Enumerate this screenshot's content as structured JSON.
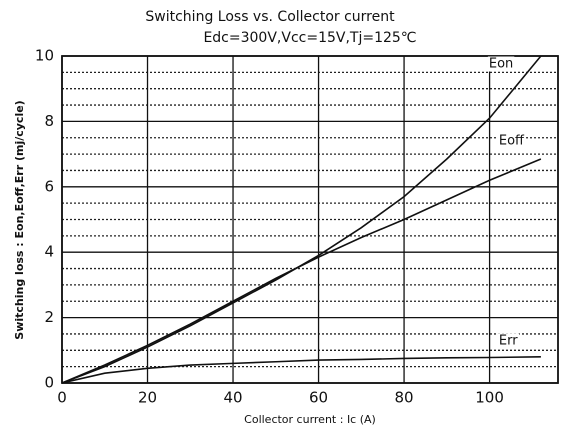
{
  "chart_data": {
    "type": "line",
    "title": "Switching Loss vs. Collector current",
    "subtitle": "Edc=300V,Vcc=15V,Tj=125℃",
    "x_label": "Collector current : Ic (A)",
    "y_label": "Switching loss : Eon,Eoff,Err (mj/cycle)",
    "x": [
      0,
      10,
      20,
      30,
      40,
      50,
      60,
      70,
      80,
      90,
      100,
      112
    ],
    "series": [
      {
        "name": "Eon",
        "color": "#111111",
        "values": [
          0,
          0.5,
          1.1,
          1.75,
          2.45,
          3.15,
          3.9,
          4.75,
          5.7,
          6.85,
          8.1,
          10
        ]
      },
      {
        "name": "Eoff",
        "color": "#111111",
        "values": [
          0,
          0.55,
          1.15,
          1.8,
          2.5,
          3.2,
          3.85,
          4.45,
          5.0,
          5.6,
          6.2,
          6.85
        ]
      },
      {
        "name": "Err",
        "color": "#111111",
        "values": [
          0,
          0.3,
          0.45,
          0.55,
          0.6,
          0.65,
          0.7,
          0.72,
          0.75,
          0.77,
          0.78,
          0.8
        ]
      }
    ],
    "xlim": [
      0,
      116
    ],
    "xticks": [
      0,
      20,
      40,
      60,
      80,
      100
    ],
    "ylim": [
      0,
      10
    ],
    "yticks": [
      0,
      2,
      4,
      6,
      8,
      10
    ],
    "yminor_ticks": [
      0.5,
      1,
      1.5,
      2.5,
      3,
      3.5,
      4.5,
      5,
      5.5,
      6.5,
      7,
      7.5,
      8.5,
      9,
      9.5
    ],
    "grid": true
  }
}
